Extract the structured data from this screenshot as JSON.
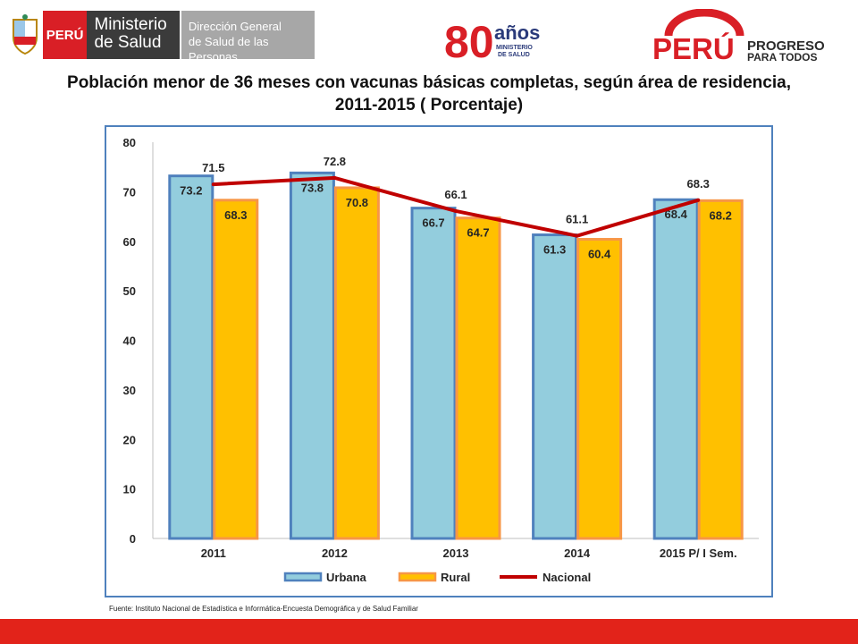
{
  "header": {
    "peru_label": "PERÚ",
    "ministerio_line1": "Ministerio",
    "ministerio_line2": "de Salud",
    "direccion_line1": "Dirección General",
    "direccion_line2": "de Salud de las Personas",
    "anios_number": "80",
    "anios_word": "años",
    "anios_sub1": "MINISTERIO",
    "anios_sub2": "DE SALUD",
    "brand_peru": "PERÚ",
    "brand_line1": "PROGRESO",
    "brand_line2": "PARA TODOS"
  },
  "title_line1": "Población menor de 36 meses con vacunas básicas completas, según área de residencia,",
  "title_line2": "2011-2015 ( Porcentaje)",
  "source": "Fuente: Instituto Nacional de Estadística e Informática-Encuesta Demográfica y de Salud Familiar",
  "colors": {
    "urbana": "#93cddd",
    "urbana_border": "#4f81bd",
    "rural": "#ffc000",
    "rural_border": "#f79646",
    "nacional": "#c00000",
    "frame": "#4f81bd",
    "footer": "#e2231a"
  },
  "chart_data": {
    "type": "bar",
    "categories": [
      "2011",
      "2012",
      "2013",
      "2014",
      "2015 P/ I Sem."
    ],
    "series": [
      {
        "name": "Urbana",
        "type": "bar",
        "values": [
          73.2,
          73.8,
          66.7,
          61.3,
          68.4
        ]
      },
      {
        "name": "Rural",
        "type": "bar",
        "values": [
          68.3,
          70.8,
          64.7,
          60.4,
          68.2
        ]
      },
      {
        "name": "Nacional",
        "type": "line",
        "values": [
          71.5,
          72.8,
          66.1,
          61.1,
          68.3
        ]
      }
    ],
    "ylim": [
      0,
      80
    ],
    "yticks": [
      "0",
      "10",
      "20",
      "30",
      "40",
      "50",
      "60",
      "70",
      "80"
    ],
    "grid": false,
    "legend": "bottom"
  }
}
